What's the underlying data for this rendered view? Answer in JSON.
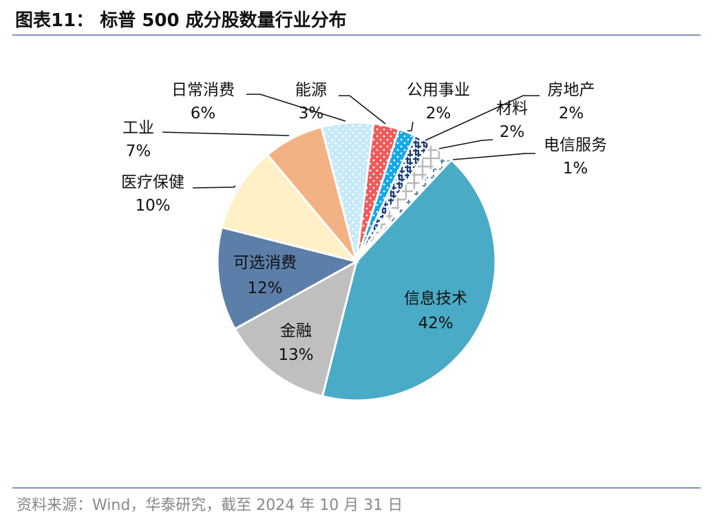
{
  "title": "图表11： 标普 500 成分股数量行业分布",
  "source": "资料来源：Wind，华泰研究，截至 2024 年 10 月 31 日",
  "chart_data": {
    "type": "pie",
    "title": "图表11： 标普 500 成分股数量行业分布",
    "slices": [
      {
        "name": "信息技术",
        "value": 42,
        "label": "42%",
        "color": "#4aabc6",
        "pattern": "solid"
      },
      {
        "name": "金融",
        "value": 13,
        "label": "13%",
        "color": "#bfbfbf",
        "pattern": "solid"
      },
      {
        "name": "可选消费",
        "value": 12,
        "label": "12%",
        "color": "#5b7fa8",
        "pattern": "solid"
      },
      {
        "name": "医疗保健",
        "value": 10,
        "label": "10%",
        "color": "#fff0c8",
        "pattern": "solid"
      },
      {
        "name": "工业",
        "value": 7,
        "label": "7%",
        "color": "#f2b283",
        "pattern": "solid"
      },
      {
        "name": "日常消费",
        "value": 6,
        "label": "6%",
        "color": "#c6e9f8",
        "pattern": "dots-white"
      },
      {
        "name": "能源",
        "value": 3,
        "label": "3%",
        "color": "#f05a5a",
        "pattern": "dots-white"
      },
      {
        "name": "公用事业",
        "value": 2,
        "label": "2%",
        "color": "#14a8e8",
        "pattern": "dots-white"
      },
      {
        "name": "房地产",
        "value": 2,
        "label": "2%",
        "color": "#1f3f78",
        "pattern": "weave"
      },
      {
        "name": "材料",
        "value": 2,
        "label": "2%",
        "color": "#b8b8b8",
        "pattern": "lattice"
      },
      {
        "name": "电信服务",
        "value": 1,
        "label": "1%",
        "color": "#5b7fa8",
        "pattern": "plus"
      }
    ]
  }
}
